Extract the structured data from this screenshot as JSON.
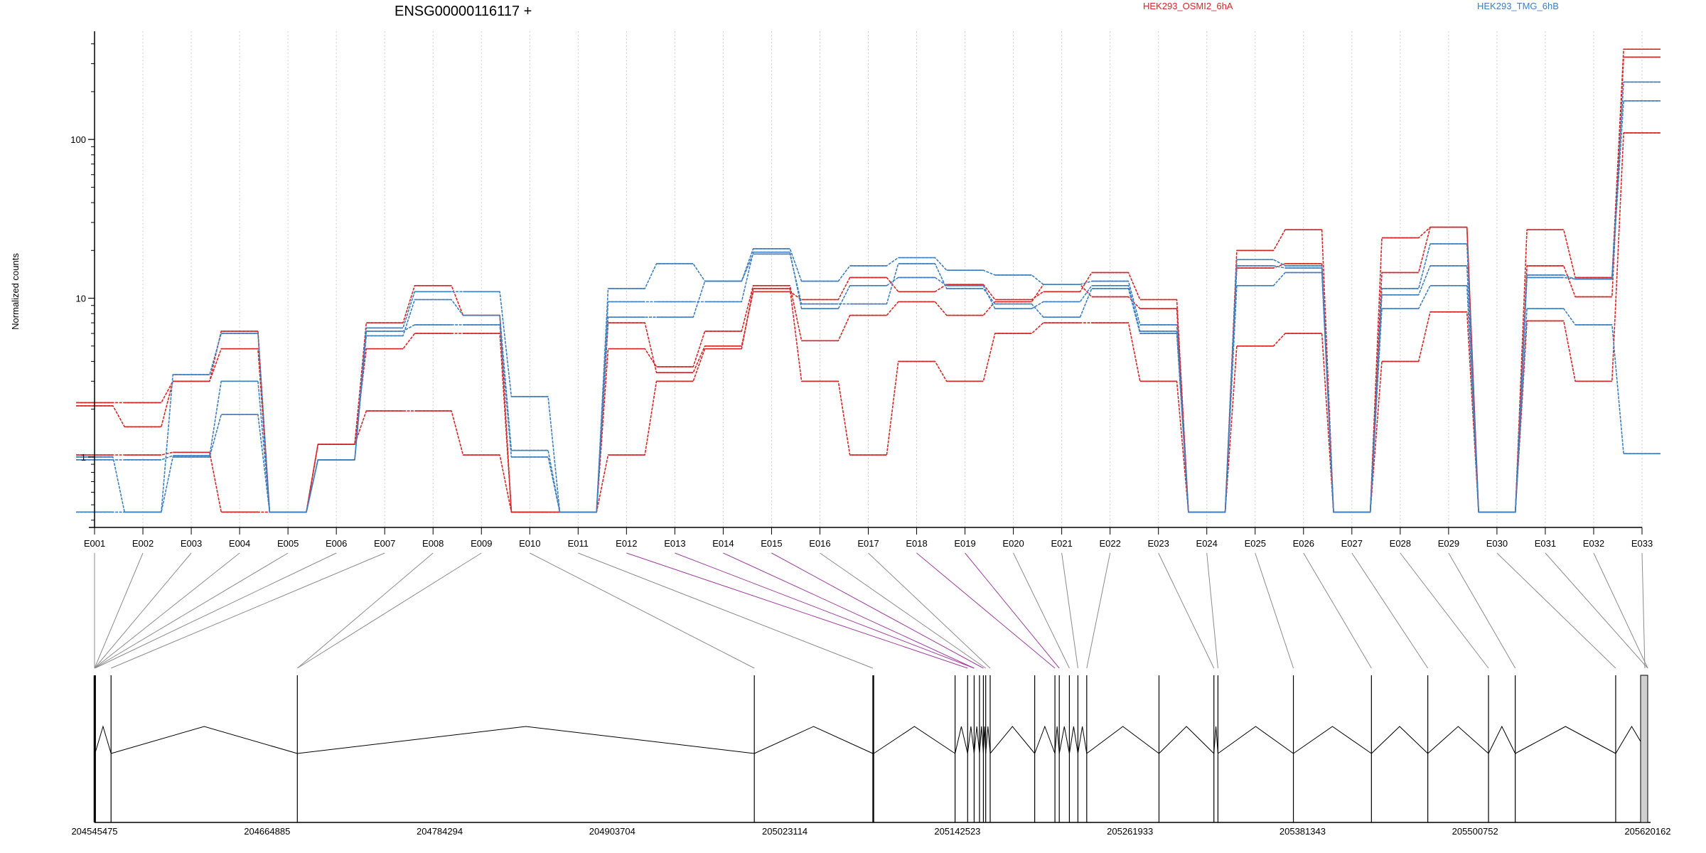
{
  "chart_data": [
    {
      "type": "line",
      "title": "ENSG00000116117 +",
      "ylabel": "Normalized counts",
      "xlabel": "",
      "y_scale": "log",
      "y_ticks": [
        {
          "value": 1,
          "label": "1"
        },
        {
          "value": 10,
          "label": "10"
        },
        {
          "value": 100,
          "label": "100"
        }
      ],
      "ylim": [
        0.36,
        480
      ],
      "grid": "vertical-dotted",
      "legend_placement": "top",
      "categories": [
        "E001",
        "E002",
        "E003",
        "E004",
        "E005",
        "E006",
        "E007",
        "E008",
        "E009",
        "E010",
        "E011",
        "E012",
        "E013",
        "E014",
        "E015",
        "E016",
        "E017",
        "E018",
        "E019",
        "E020",
        "E021",
        "E022",
        "E023",
        "E024",
        "E025",
        "E026",
        "E027",
        "E028",
        "E029",
        "E030",
        "E031",
        "E032",
        "E033"
      ],
      "groups": [
        {
          "name": "HEK293_OSMI2_6hA",
          "color": "#d62728",
          "series": [
            {
              "values": [
                2.2,
                2.2,
                3.0,
                6.2,
                0.45,
                1.2,
                7.0,
                12.0,
                7.8,
                0.45,
                0.45,
                7.0,
                3.4,
                5.0,
                11.0,
                9.8,
                13.5,
                11.0,
                12.2,
                9.8,
                11.0,
                14.5,
                9.8,
                0.45,
                20.0,
                27.0,
                0.45,
                24.0,
                28.0,
                0.45,
                27.0,
                13.5,
                370
              ]
            },
            {
              "values": [
                2.1,
                1.55,
                3.0,
                4.8,
                0.45,
                1.2,
                4.8,
                6.0,
                6.0,
                0.45,
                0.45,
                4.8,
                3.7,
                6.2,
                12.0,
                5.4,
                7.8,
                9.5,
                7.8,
                9.5,
                12.2,
                10.2,
                8.6,
                0.45,
                15.5,
                16.5,
                0.45,
                14.5,
                28.0,
                0.45,
                16.0,
                10.2,
                330
              ]
            },
            {
              "values": [
                1.03,
                1.03,
                1.07,
                0.45,
                0.45,
                1.2,
                1.95,
                1.95,
                1.03,
                0.45,
                0.45,
                1.03,
                3.0,
                4.8,
                11.5,
                3.0,
                1.03,
                4.0,
                3.0,
                6.0,
                7.0,
                7.0,
                3.0,
                0.45,
                5.0,
                6.0,
                0.45,
                4.0,
                8.2,
                0.45,
                7.2,
                3.0,
                110
              ]
            }
          ]
        },
        {
          "name": "HEK293_TMG_6hB",
          "color": "#3e7fc1",
          "series": [
            {
              "values": [
                1.0,
                0.45,
                3.3,
                6.0,
                0.45,
                0.96,
                6.5,
                11.0,
                11.0,
                2.4,
                0.45,
                11.5,
                16.5,
                12.8,
                20.5,
                12.8,
                16.0,
                18.0,
                15.0,
                14.0,
                12.2,
                12.8,
                6.8,
                0.45,
                17.5,
                16.0,
                0.45,
                11.5,
                22.0,
                0.45,
                14.0,
                13.2,
                230
              ]
            },
            {
              "values": [
                0.96,
                0.96,
                1.02,
                3.0,
                0.45,
                0.96,
                5.8,
                9.8,
                7.8,
                1.1,
                0.45,
                9.5,
                9.5,
                9.5,
                19.5,
                8.6,
                12.0,
                13.5,
                12.0,
                8.6,
                9.5,
                12.0,
                6.2,
                0.45,
                16.0,
                15.5,
                0.45,
                10.5,
                16.0,
                0.45,
                13.5,
                13.2,
                175
              ]
            },
            {
              "values": [
                0.45,
                0.45,
                1.0,
                1.85,
                0.45,
                0.96,
                6.2,
                6.8,
                6.8,
                1.0,
                0.45,
                7.6,
                7.6,
                12.8,
                19.0,
                9.2,
                9.2,
                16.5,
                11.5,
                9.2,
                7.6,
                11.5,
                6.0,
                0.45,
                12.0,
                14.5,
                0.45,
                8.6,
                12.0,
                0.45,
                8.6,
                6.8,
                1.05
              ]
            }
          ]
        }
      ]
    },
    {
      "type": "gene-model",
      "x_ticks": [
        "204545475",
        "204664885",
        "204784294",
        "204903704",
        "205023114",
        "205142523",
        "205261933",
        "205381343",
        "205500752",
        "205620162"
      ],
      "xlim": [
        204545475,
        205620162
      ],
      "exon_starts": [
        204545475,
        204545790,
        204556900,
        204685800,
        205002000,
        205084000,
        205084600,
        205140900,
        205149600,
        205154100,
        205157800,
        205160500,
        205162100,
        205165200,
        205196000,
        205210000,
        205213000,
        205220000,
        205225900,
        205232000,
        205282000,
        205320000,
        205322800,
        205375000,
        205429000,
        205468000,
        205510000,
        205528500,
        205598000,
        205620162
      ],
      "linked_exons": [
        "E012",
        "E013",
        "E014",
        "E015",
        "E018",
        "E019"
      ],
      "link_color": "#a040a0"
    }
  ]
}
